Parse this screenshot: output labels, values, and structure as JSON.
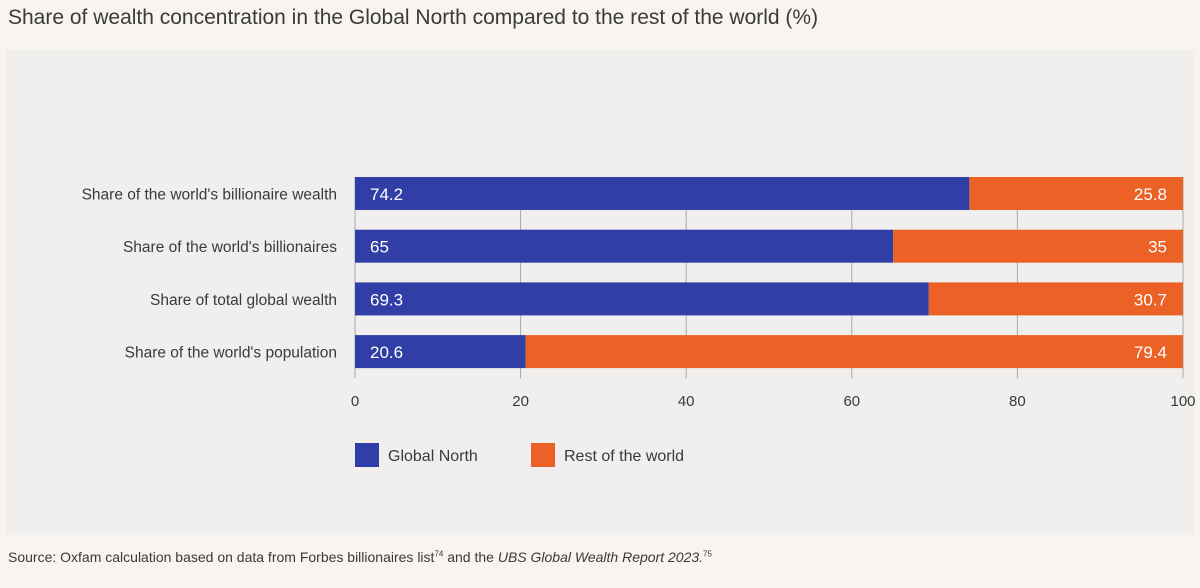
{
  "title": "Share of wealth concentration in the Global North compared to the rest of the world (%)",
  "source": {
    "prefix": "Source: Oxfam calculation based on data from Forbes billionaires list",
    "ref1": "74",
    "middle": " and the ",
    "report": "UBS Global Wealth Report 2023.",
    "ref2": "75"
  },
  "colors": {
    "global_north": "#303ea6",
    "rest_of_world": "#ec6126",
    "grid": "#a8a8a8",
    "text": "#3a3a3a"
  },
  "chart_data": {
    "type": "bar",
    "orientation": "horizontal",
    "stacked": true,
    "title": "Share of wealth concentration in the Global North compared to the rest of the world (%)",
    "categories": [
      "Share of the world's billionaire wealth",
      "Share of the world's billionaires",
      "Share of total global wealth",
      "Share of the world's population"
    ],
    "series": [
      {
        "name": "Global North",
        "values": [
          74.2,
          65,
          69.3,
          20.6
        ],
        "labels": [
          "74.2",
          "65",
          "69.3",
          "20.6"
        ]
      },
      {
        "name": "Rest of the world",
        "values": [
          25.8,
          35,
          30.7,
          79.4
        ],
        "labels": [
          "25.8",
          "35",
          "30.7",
          "79.4"
        ]
      }
    ],
    "xlim": [
      0,
      100
    ],
    "xticks": [
      "0",
      "20",
      "40",
      "60",
      "80",
      "100"
    ],
    "xlabel": "",
    "ylabel": "",
    "grid": true,
    "legend_position": "bottom-left"
  }
}
